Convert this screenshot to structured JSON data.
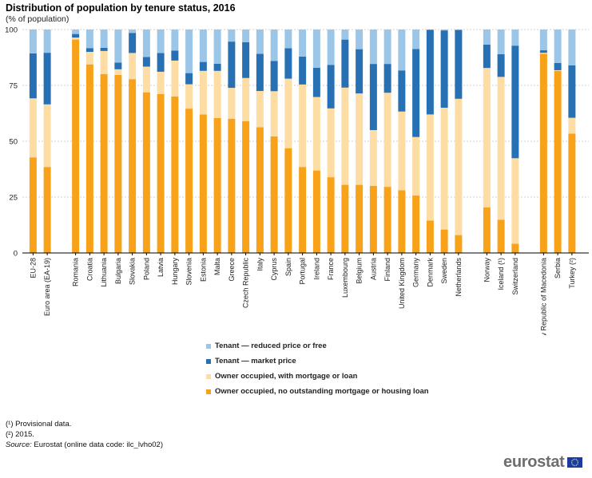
{
  "title": "Distribution of population by tenure status, 2016",
  "subtitle": "(% of population)",
  "chart_data": {
    "type": "bar",
    "stacked": true,
    "title": "Distribution of population by tenure status, 2016",
    "ylabel": "% of population",
    "ylim": [
      0,
      100
    ],
    "yticks": [
      0,
      25,
      50,
      75,
      100
    ],
    "grid": true,
    "categories": [
      "EU-28",
      "Euro area (EA-19)",
      "",
      "Romania",
      "Croatia",
      "Lithuania",
      "Bulgaria",
      "Slovakia",
      "Poland",
      "Latvia",
      "Hungary",
      "Slovenia",
      "Estonia",
      "Malta",
      "Greece",
      "Czech Republic",
      "Italy",
      "Cyprus",
      "Spain",
      "Portugal",
      "Ireland",
      "France",
      "Luxembourg",
      "Belgium",
      "Austria",
      "Finland",
      "United Kingdom",
      "Germany",
      "Denmark",
      "Sweden",
      "Netherlands",
      "",
      "Norway",
      "Iceland (¹)",
      "Switzerland",
      "",
      "Former Yugoslav Republic of Macedonia",
      "Serbia",
      "Turkey (²)"
    ],
    "series": [
      {
        "name": "Owner occupied, no outstanding mortgage or housing loan",
        "color": "#f8a21a",
        "values": [
          42.8,
          38.5,
          null,
          95.5,
          84.4,
          80.1,
          79.7,
          77.8,
          71.9,
          71.1,
          70.0,
          64.6,
          62.0,
          60.4,
          60.1,
          59.0,
          56.3,
          52.2,
          46.9,
          38.5,
          36.9,
          33.9,
          30.5,
          30.5,
          30.0,
          29.6,
          28.1,
          25.7,
          14.5,
          10.5,
          8.0,
          null,
          20.4,
          14.9,
          4.1,
          null,
          89.1,
          81.5,
          53.4
        ]
      },
      {
        "name": "Owner occupied, with mortgage or loan",
        "color": "#fddda4",
        "values": [
          26.4,
          28.0,
          null,
          0.9,
          5.6,
          10.3,
          2.5,
          11.7,
          11.5,
          10.0,
          16.1,
          10.9,
          19.5,
          21.1,
          13.8,
          19.3,
          16.2,
          20.2,
          31.1,
          36.9,
          32.9,
          30.8,
          43.5,
          40.9,
          25.0,
          42.1,
          35.2,
          26.2,
          47.5,
          54.5,
          61.0,
          null,
          62.4,
          63.9,
          38.3,
          null,
          0.5,
          0.3,
          7.1
        ]
      },
      {
        "name": "Tenant — market price",
        "color": "#2870b4",
        "values": [
          20.1,
          23.1,
          null,
          1.6,
          1.7,
          1.4,
          3.0,
          9.0,
          4.3,
          8.4,
          4.5,
          5.0,
          4.0,
          3.2,
          20.7,
          16.0,
          16.6,
          13.5,
          13.6,
          12.5,
          13.1,
          19.5,
          21.5,
          19.8,
          29.6,
          12.9,
          18.4,
          39.4,
          37.9,
          34.6,
          30.8,
          null,
          10.5,
          10.2,
          50.4,
          null,
          1.1,
          3.2,
          23.5
        ]
      },
      {
        "name": "Tenant — reduced price or free",
        "color": "#9cc6e8",
        "values": [
          10.7,
          10.4,
          null,
          2.0,
          8.3,
          8.2,
          14.8,
          1.5,
          12.3,
          10.5,
          9.4,
          19.5,
          14.5,
          15.3,
          5.4,
          5.7,
          10.9,
          14.1,
          8.4,
          12.1,
          17.1,
          15.8,
          4.5,
          8.8,
          15.4,
          15.4,
          18.3,
          8.7,
          0.1,
          0.4,
          0.2,
          null,
          6.7,
          11.0,
          7.2,
          null,
          9.3,
          15.0,
          16.0
        ]
      }
    ]
  },
  "legend": {
    "items": [
      {
        "label": "Tenant — reduced price or free",
        "color": "#9cc6e8"
      },
      {
        "label": "Tenant — market price",
        "color": "#2870b4"
      },
      {
        "label": "Owner occupied, with mortgage or loan",
        "color": "#fddda4"
      },
      {
        "label": "Owner occupied, no outstanding mortgage or housing loan",
        "color": "#f8a21a"
      }
    ]
  },
  "footnotes": {
    "note1": "(¹) Provisional data.",
    "note2": "(²) 2015.",
    "source_label": "Source:",
    "source_text": " Eurostat (online data code: ilc_lvho02)"
  },
  "branding": {
    "logo_text": "eurostat",
    "logo_icon": "eu-flag-icon"
  }
}
